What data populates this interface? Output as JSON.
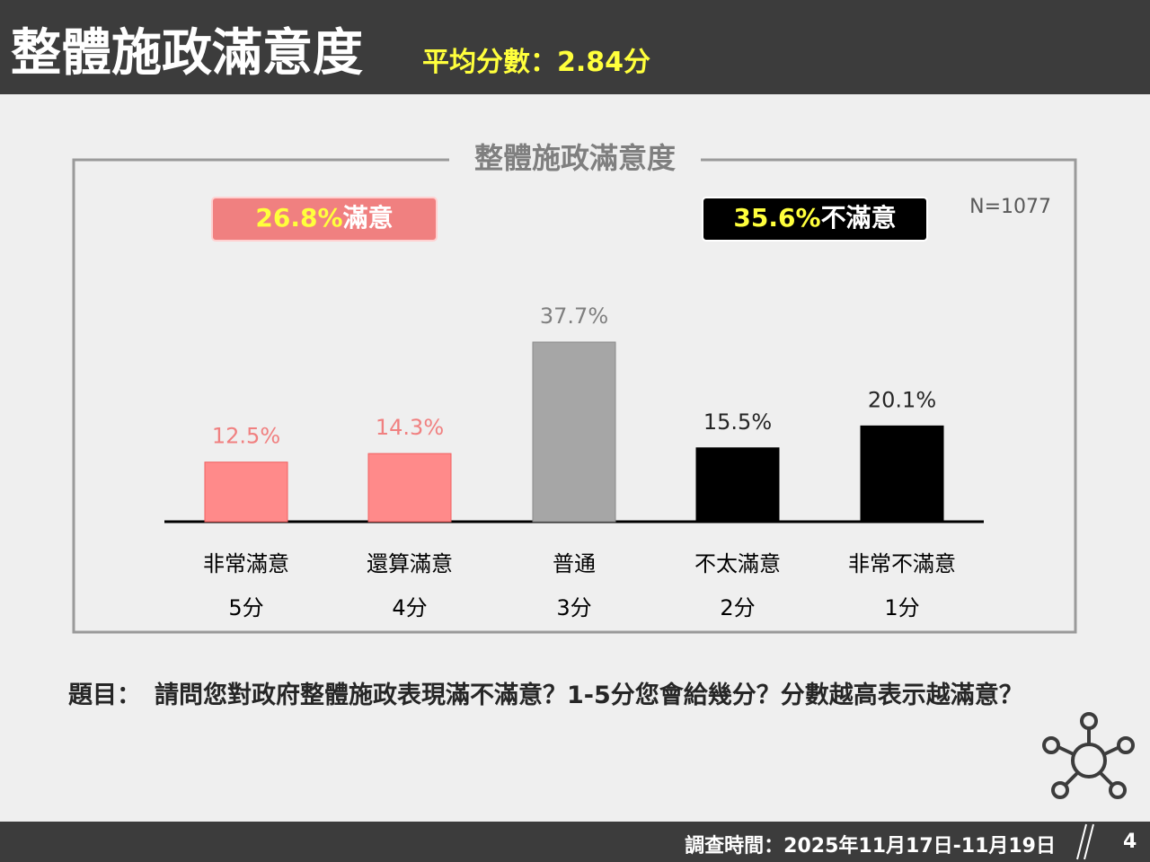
{
  "header": {
    "title": "整體施政滿意度",
    "subtitle": "平均分數：2.84分"
  },
  "chart_data": {
    "type": "bar",
    "title": "整體施政滿意度",
    "categories": [
      "非常滿意",
      "還算滿意",
      "普通",
      "不太滿意",
      "非常不滿意"
    ],
    "scores": [
      "5分",
      "4分",
      "3分",
      "2分",
      "1分"
    ],
    "values": [
      12.5,
      14.3,
      37.7,
      15.5,
      20.1
    ],
    "value_labels": [
      "12.5%",
      "14.3%",
      "37.7%",
      "15.5%",
      "20.1%"
    ],
    "colors": [
      "#ff8a8a",
      "#ff8a8a",
      "#a6a6a6",
      "#000000",
      "#000000"
    ],
    "label_colors": [
      "#f08080",
      "#f08080",
      "#7f7f7f",
      "#262626",
      "#262626"
    ],
    "badges": [
      {
        "value_label": "26.8%",
        "label": "滿意",
        "color": "#f08080"
      },
      {
        "value_label": "35.6%",
        "label": "不滿意",
        "color": "#000000"
      }
    ],
    "note": "N=1077"
  },
  "question": {
    "label": "題目：",
    "text": "請問您對政府整體施政表現滿不滿意？1-5分您會給幾分？分數越高表示越滿意？"
  },
  "footer": {
    "survey_period": "調查時間：2025年11月17日-11月19日",
    "page": "4"
  }
}
